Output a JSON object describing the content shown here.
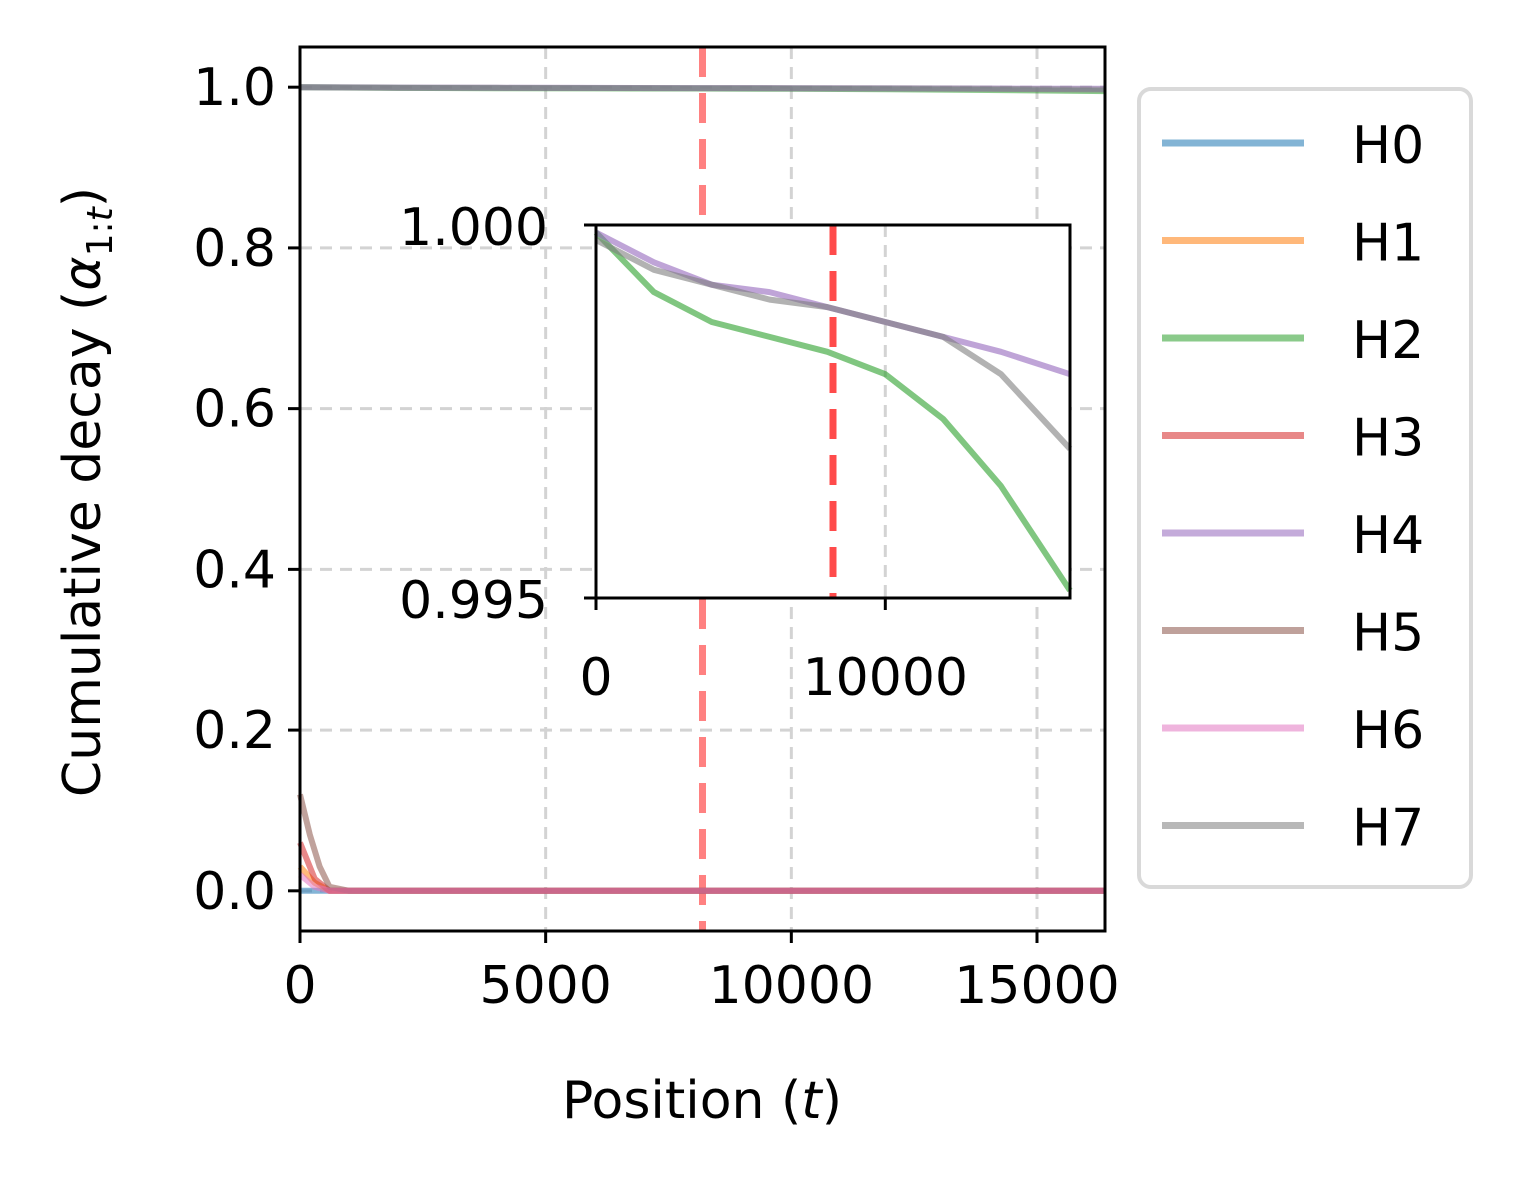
{
  "chart_data": {
    "type": "line",
    "xlabel": "Position (t)",
    "ylabel": "Cumulative decay (α₁:ₜ)",
    "xlim": [
      0,
      16384
    ],
    "ylim": [
      -0.05,
      1.05
    ],
    "xticks": [
      "0",
      "5000",
      "10000",
      "15000"
    ],
    "yticks": [
      "0.0",
      "0.2",
      "0.4",
      "0.6",
      "0.8",
      "1.0"
    ],
    "grid": true,
    "legend_position": "outside-right",
    "vline": {
      "x": 8192,
      "color": "#ff4d4d",
      "style": "dashed"
    },
    "series": [
      {
        "name": "H0",
        "color": "#1f77b4",
        "x": [
          0,
          300,
          600,
          1000,
          16384
        ],
        "y": [
          0.0,
          0.0,
          0.0,
          0.0,
          0.0
        ]
      },
      {
        "name": "H1",
        "color": "#ff7f0e",
        "x": [
          0,
          300,
          600,
          1000,
          16384
        ],
        "y": [
          0.03,
          0.01,
          0.0,
          0.0,
          0.0
        ]
      },
      {
        "name": "H2",
        "color": "#2ca02c",
        "x": [
          0,
          2000,
          4000,
          6000,
          8000,
          10000,
          12000,
          14000,
          16384
        ],
        "y": [
          0.9999,
          0.9991,
          0.9987,
          0.9985,
          0.9983,
          0.998,
          0.9974,
          0.9965,
          0.9951
        ]
      },
      {
        "name": "H3",
        "color": "#d62728",
        "x": [
          0,
          300,
          600,
          1000,
          16384
        ],
        "y": [
          0.06,
          0.015,
          0.0,
          0.0,
          0.0
        ]
      },
      {
        "name": "H4",
        "color": "#9467bd",
        "x": [
          0,
          2000,
          4000,
          6000,
          8000,
          10000,
          12000,
          14000,
          16384
        ],
        "y": [
          0.9999,
          0.9995,
          0.9992,
          0.9991,
          0.9989,
          0.9987,
          0.9985,
          0.9983,
          0.998
        ]
      },
      {
        "name": "H5",
        "color": "#8c564b",
        "x": [
          0,
          200,
          400,
          600,
          1000,
          16384
        ],
        "y": [
          0.12,
          0.07,
          0.03,
          0.005,
          0.0,
          0.0
        ]
      },
      {
        "name": "H6",
        "color": "#e377c2",
        "x": [
          0,
          300,
          600,
          1000,
          16384
        ],
        "y": [
          0.02,
          0.005,
          0.0,
          0.0,
          0.0
        ]
      },
      {
        "name": "H7",
        "color": "#7f7f7f",
        "x": [
          0,
          2000,
          4000,
          6000,
          8000,
          10000,
          12000,
          14000,
          16384
        ],
        "y": [
          0.9998,
          0.9994,
          0.9992,
          0.999,
          0.9989,
          0.9987,
          0.9985,
          0.998,
          0.997
        ]
      }
    ],
    "inset": {
      "series": [
        "H2",
        "H4",
        "H7"
      ],
      "xlim": [
        0,
        16384
      ],
      "ylim": [
        0.995,
        1.0
      ],
      "xticks": [
        "0",
        "10000"
      ],
      "yticks": [
        "0.995",
        "1.000"
      ],
      "grid": true,
      "vline": {
        "x": 8192,
        "color": "#ff0000",
        "style": "dashed"
      }
    }
  }
}
